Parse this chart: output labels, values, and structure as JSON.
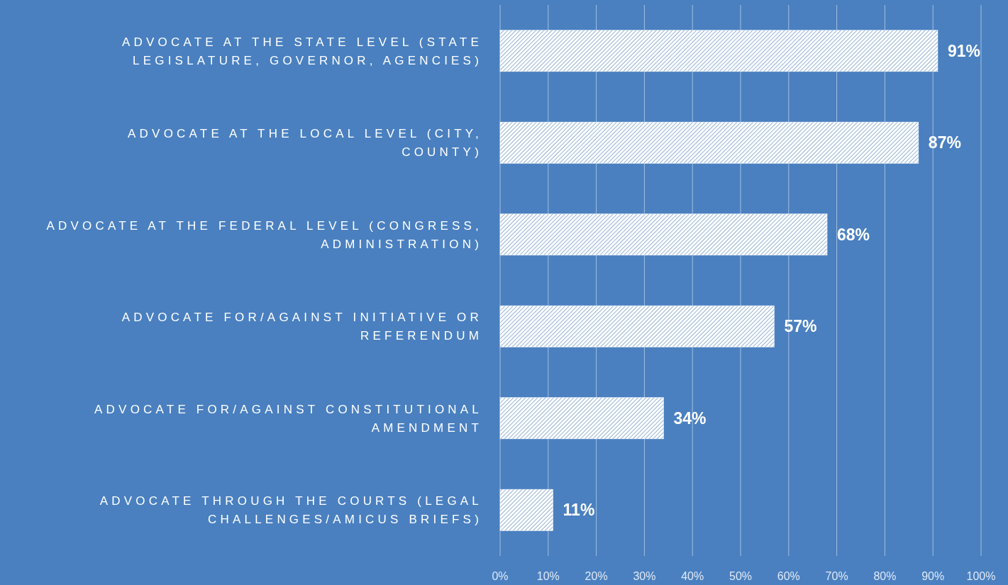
{
  "chart_data": {
    "type": "bar",
    "orientation": "horizontal",
    "categories": [
      "ADVOCATE AT THE STATE LEVEL (STATE LEGISLATURE, GOVERNOR, AGENCIES)",
      "ADVOCATE AT THE LOCAL LEVEL (CITY, COUNTY)",
      "ADVOCATE AT THE FEDERAL LEVEL (CONGRESS, ADMINISTRATION)",
      "ADVOCATE FOR/AGAINST INITIATIVE OR REFERENDUM",
      "ADVOCATE FOR/AGAINST CONSTITUTIONAL AMENDMENT",
      "ADVOCATE THROUGH THE COURTS (LEGAL CHALLENGES/AMICUS BRIEFS)"
    ],
    "values": [
      91,
      87,
      68,
      57,
      34,
      11
    ],
    "value_labels": [
      "91%",
      "87%",
      "68%",
      "57%",
      "34%",
      "11%"
    ],
    "color": "#ffffff",
    "xlim": [
      0,
      100
    ],
    "xticks": [
      {
        "value": 0,
        "label": "0%"
      },
      {
        "value": 10,
        "label": "10%"
      },
      {
        "value": 20,
        "label": "20%"
      },
      {
        "value": 30,
        "label": "30%"
      },
      {
        "value": 40,
        "label": "40%"
      },
      {
        "value": 50,
        "label": "50%"
      },
      {
        "value": 60,
        "label": "60%"
      },
      {
        "value": 70,
        "label": "70%"
      },
      {
        "value": 80,
        "label": "80%"
      },
      {
        "value": 90,
        "label": "90%"
      },
      {
        "value": 100,
        "label": "100%"
      }
    ],
    "grid": "x"
  }
}
